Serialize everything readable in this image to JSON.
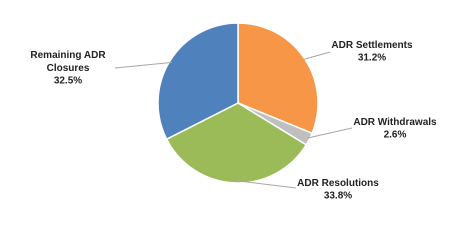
{
  "chart_data": {
    "type": "pie",
    "categories": [
      "ADR Settlements",
      "ADR Withdrawals",
      "ADR Resolutions",
      "Remaining ADR Closures"
    ],
    "values": [
      31.2,
      2.6,
      33.8,
      32.5
    ],
    "value_labels": [
      "31.2%",
      "2.6%",
      "33.8%",
      "32.5%"
    ],
    "colors": [
      "#f79646",
      "#bfbfbf",
      "#9bbb59",
      "#4f81bd"
    ]
  }
}
